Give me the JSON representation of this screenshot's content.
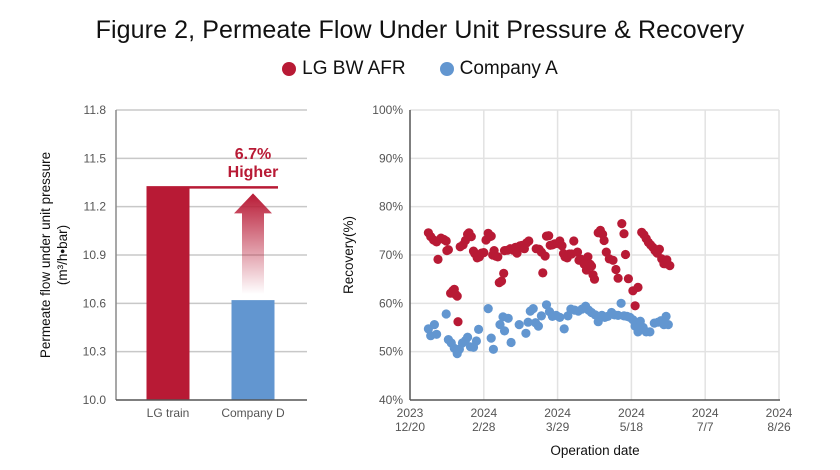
{
  "title": "Figure 2, Permeate Flow Under Unit Pressure & Recovery",
  "legend": [
    {
      "label": "LG BW AFR",
      "color": "#b81a35"
    },
    {
      "label": "Company A",
      "color": "#6296d0"
    }
  ],
  "chart_data": [
    {
      "type": "bar",
      "title": "",
      "categories": [
        "LG train",
        "Company D"
      ],
      "values": [
        11.32,
        10.62
      ],
      "colors": [
        "#b81a35",
        "#6296d0"
      ],
      "ylabel_line1": "Permeate flow under unit pressure",
      "ylabel_line2": "(m³/h•bar)",
      "xlabel": "",
      "ylim": [
        10.0,
        11.8
      ],
      "yticks": [
        "10.0",
        "10.3",
        "10.6",
        "10.9",
        "11.2",
        "11.5",
        "11.8"
      ],
      "grid": true,
      "annotation": {
        "line1": "6.7%",
        "line2": "Higher",
        "color": "#b81a35"
      }
    },
    {
      "type": "scatter",
      "title": "",
      "xlabel": "Operation date",
      "ylabel": "Recovery(%)",
      "ylim": [
        40,
        100
      ],
      "yticks": [
        "40%",
        "50%",
        "60%",
        "70%",
        "80%",
        "90%",
        "100%"
      ],
      "xticks": [
        {
          "year": "2023",
          "date": "12/20"
        },
        {
          "year": "2024",
          "date": "2/28"
        },
        {
          "year": "2024",
          "date": "3/29"
        },
        {
          "year": "2024",
          "date": "5/18"
        },
        {
          "year": "2024",
          "date": "7/7"
        },
        {
          "year": "2024",
          "date": "8/26"
        }
      ],
      "x_units": "tick index (0 = 2023 12/20, 5 = 2024 8/26)",
      "grid": true,
      "series": [
        {
          "name": "LG BW AFR",
          "color": "#b81a35",
          "points": [
            [
              0.25,
              74.6
            ],
            [
              0.28,
              73.8
            ],
            [
              0.32,
              73.1
            ],
            [
              0.36,
              72.7
            ],
            [
              0.38,
              69.1
            ],
            [
              0.42,
              73.5
            ],
            [
              0.46,
              73.2
            ],
            [
              0.49,
              72.9
            ],
            [
              0.5,
              70.9
            ],
            [
              0.52,
              71.1
            ],
            [
              0.55,
              62.1
            ],
            [
              0.58,
              62.6
            ],
            [
              0.6,
              62.9
            ],
            [
              0.62,
              61.8
            ],
            [
              0.64,
              61.5
            ],
            [
              0.65,
              56.2
            ],
            [
              0.68,
              71.7
            ],
            [
              0.72,
              72.1
            ],
            [
              0.75,
              73.0
            ],
            [
              0.78,
              74.3
            ],
            [
              0.8,
              74.6
            ],
            [
              0.83,
              73.8
            ],
            [
              0.86,
              70.8
            ],
            [
              0.88,
              70.3
            ],
            [
              0.91,
              69.4
            ],
            [
              0.94,
              69.6
            ],
            [
              0.97,
              70.4
            ],
            [
              1.0,
              70.5
            ],
            [
              1.03,
              73.1
            ],
            [
              1.06,
              74.5
            ],
            [
              1.08,
              73.8
            ],
            [
              1.1,
              73.9
            ],
            [
              1.12,
              70.0
            ],
            [
              1.14,
              70.9
            ],
            [
              1.16,
              69.8
            ],
            [
              1.19,
              69.6
            ],
            [
              1.21,
              64.3
            ],
            [
              1.24,
              64.6
            ],
            [
              1.27,
              66.2
            ],
            [
              1.28,
              70.9
            ],
            [
              1.32,
              71.0
            ],
            [
              1.36,
              71.3
            ],
            [
              1.4,
              71.0
            ],
            [
              1.43,
              71.6
            ],
            [
              1.45,
              70.4
            ],
            [
              1.49,
              71.9
            ],
            [
              1.52,
              72.0
            ],
            [
              1.55,
              71.3
            ],
            [
              1.58,
              72.5
            ],
            [
              1.61,
              72.9
            ],
            [
              1.71,
              71.3
            ],
            [
              1.75,
              71.2
            ],
            [
              1.78,
              70.6
            ],
            [
              1.8,
              66.3
            ],
            [
              1.83,
              69.8
            ],
            [
              1.85,
              73.9
            ],
            [
              1.88,
              74.0
            ],
            [
              1.9,
              72.0
            ],
            [
              1.93,
              72.1
            ],
            [
              1.96,
              72.3
            ],
            [
              2.0,
              72.4
            ],
            [
              2.03,
              72.9
            ],
            [
              2.06,
              71.9
            ],
            [
              2.08,
              70.3
            ],
            [
              2.1,
              69.6
            ],
            [
              2.13,
              69.4
            ],
            [
              2.16,
              70.2
            ],
            [
              2.19,
              70.2
            ],
            [
              2.22,
              72.9
            ],
            [
              2.27,
              70.6
            ],
            [
              2.29,
              68.9
            ],
            [
              2.32,
              69.1
            ],
            [
              2.36,
              68.1
            ],
            [
              2.39,
              66.9
            ],
            [
              2.41,
              69.6
            ],
            [
              2.44,
              68.1
            ],
            [
              2.46,
              67.7
            ],
            [
              2.48,
              65.9
            ],
            [
              2.5,
              65.0
            ],
            [
              2.55,
              74.6
            ],
            [
              2.58,
              75.1
            ],
            [
              2.61,
              74.3
            ],
            [
              2.63,
              73.0
            ],
            [
              2.66,
              70.6
            ],
            [
              2.7,
              69.2
            ],
            [
              2.75,
              68.9
            ],
            [
              2.79,
              67.0
            ],
            [
              2.82,
              65.2
            ],
            [
              2.87,
              76.5
            ],
            [
              2.9,
              74.4
            ],
            [
              2.92,
              70.1
            ],
            [
              2.96,
              65.1
            ],
            [
              3.02,
              62.6
            ],
            [
              3.05,
              59.5
            ],
            [
              3.09,
              63.3
            ],
            [
              3.14,
              74.7
            ],
            [
              3.17,
              74.2
            ],
            [
              3.2,
              73.4
            ],
            [
              3.23,
              72.6
            ],
            [
              3.26,
              72.1
            ],
            [
              3.29,
              71.6
            ],
            [
              3.32,
              70.9
            ],
            [
              3.35,
              70.4
            ],
            [
              3.38,
              71.2
            ],
            [
              3.41,
              69.2
            ],
            [
              3.44,
              68.2
            ],
            [
              3.46,
              68.2
            ],
            [
              3.48,
              69.0
            ],
            [
              3.52,
              67.8
            ]
          ]
        },
        {
          "name": "Company A",
          "color": "#6296d0",
          "points": [
            [
              0.25,
              54.7
            ],
            [
              0.28,
              53.3
            ],
            [
              0.33,
              55.6
            ],
            [
              0.36,
              53.6
            ],
            [
              0.49,
              57.8
            ],
            [
              0.52,
              52.5
            ],
            [
              0.56,
              51.8
            ],
            [
              0.6,
              50.7
            ],
            [
              0.64,
              49.6
            ],
            [
              0.67,
              50.5
            ],
            [
              0.71,
              51.8
            ],
            [
              0.75,
              52.3
            ],
            [
              0.78,
              53.0
            ],
            [
              0.82,
              51.0
            ],
            [
              0.86,
              50.9
            ],
            [
              0.9,
              52.2
            ],
            [
              0.93,
              54.6
            ],
            [
              1.06,
              58.9
            ],
            [
              1.1,
              52.8
            ],
            [
              1.13,
              50.5
            ],
            [
              1.22,
              55.6
            ],
            [
              1.26,
              57.2
            ],
            [
              1.28,
              54.3
            ],
            [
              1.33,
              56.9
            ],
            [
              1.37,
              51.9
            ],
            [
              1.48,
              55.6
            ],
            [
              1.57,
              53.8
            ],
            [
              1.6,
              56.1
            ],
            [
              1.63,
              58.4
            ],
            [
              1.67,
              58.9
            ],
            [
              1.7,
              56.0
            ],
            [
              1.74,
              55.3
            ],
            [
              1.78,
              57.4
            ],
            [
              1.85,
              59.7
            ],
            [
              1.89,
              58.3
            ],
            [
              1.93,
              57.3
            ],
            [
              1.98,
              57.5
            ],
            [
              2.03,
              57.1
            ],
            [
              2.09,
              54.7
            ],
            [
              2.14,
              57.4
            ],
            [
              2.18,
              58.8
            ],
            [
              2.23,
              58.6
            ],
            [
              2.28,
              58.4
            ],
            [
              2.33,
              58.8
            ],
            [
              2.38,
              59.4
            ],
            [
              2.42,
              58.6
            ],
            [
              2.46,
              58.1
            ],
            [
              2.51,
              57.6
            ],
            [
              2.55,
              56.2
            ],
            [
              2.6,
              57.5
            ],
            [
              2.64,
              57.1
            ],
            [
              2.68,
              57.3
            ],
            [
              2.73,
              58.1
            ],
            [
              2.77,
              57.6
            ],
            [
              2.82,
              57.5
            ],
            [
              2.86,
              60.0
            ],
            [
              2.9,
              57.4
            ],
            [
              2.94,
              57.3
            ],
            [
              2.98,
              57.1
            ],
            [
              3.02,
              56.6
            ],
            [
              3.05,
              55.3
            ],
            [
              3.09,
              54.1
            ],
            [
              3.12,
              56.3
            ],
            [
              3.16,
              55.0
            ],
            [
              3.2,
              54.1
            ],
            [
              3.25,
              54.1
            ],
            [
              3.31,
              55.9
            ],
            [
              3.36,
              56.1
            ],
            [
              3.4,
              56.4
            ],
            [
              3.44,
              55.6
            ],
            [
              3.47,
              57.3
            ],
            [
              3.5,
              55.6
            ]
          ]
        }
      ]
    }
  ]
}
